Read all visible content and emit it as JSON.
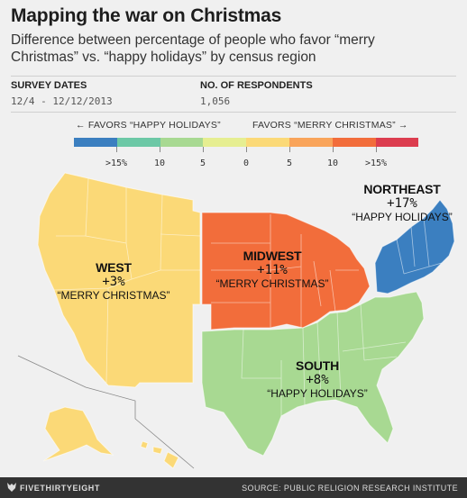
{
  "header": {
    "title": "Mapping the war on Christmas",
    "subtitle": "Difference between percentage of people who favor “merry Christmas” vs. “happy holidays” by census region"
  },
  "meta": {
    "survey_dates_label": "SURVEY DATES",
    "survey_dates_value": "12/4 - 12/12/2013",
    "respondents_label": "NO. OF RESPONDENTS",
    "respondents_value": "1,056"
  },
  "legend": {
    "left_heading": "← FAVORS “HAPPY HOLIDAYS”",
    "right_heading": "FAVORS “MERRY CHRISTMAS” →",
    "colors": [
      "#3b7fc0",
      "#6cc8a6",
      "#a8d992",
      "#e6ee91",
      "#fbd977",
      "#f9a45a",
      "#f26d3b",
      "#dc3d4f"
    ],
    "ticks": [
      ">15%",
      "10",
      "5",
      "0",
      "5",
      "10",
      ">15%"
    ]
  },
  "regions": {
    "west": {
      "name": "WEST",
      "value": "+3%",
      "preference": "“MERRY CHRISTMAS”",
      "color": "#fbd977"
    },
    "midwest": {
      "name": "MIDWEST",
      "value": "+11%",
      "preference": "“MERRY CHRISTMAS”",
      "color": "#f26d3b"
    },
    "northeast": {
      "name": "NORTHEAST",
      "value": "+17%",
      "preference": "“HAPPY HOLIDAYS”",
      "color": "#3b7fc0"
    },
    "south": {
      "name": "SOUTH",
      "value": "+8%",
      "preference": "“HAPPY HOLIDAYS”",
      "color": "#a8d992"
    }
  },
  "footer": {
    "brand": "FIVETHIRTYEIGHT",
    "source": "SOURCE: PUBLIC RELIGION RESEARCH INSTITUTE"
  }
}
